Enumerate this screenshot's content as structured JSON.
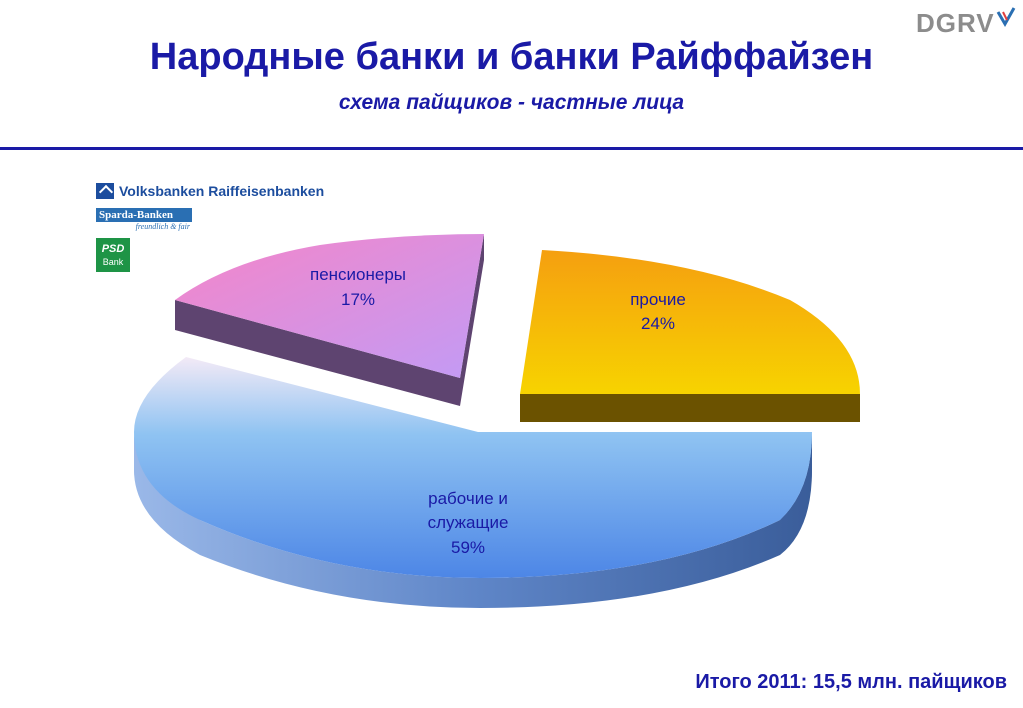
{
  "header": {
    "title": "Народные банки и банки Райффайзен",
    "subtitle": "схема пайщиков  -  частные лица",
    "brand": "DGRV"
  },
  "logos": {
    "vr": "Volksbanken Raiffeisenbanken",
    "sparda": "Sparda-Banken",
    "sparda_tagline": "freundlich & fair",
    "psd_top": "PSD",
    "psd_bottom": "Bank"
  },
  "chart_data": {
    "type": "pie",
    "title": "",
    "categories": [
      "рабочие и служащие",
      "пенсионеры",
      "прочие"
    ],
    "values": [
      59,
      17,
      24
    ],
    "labels": [
      {
        "lines": [
          "рабочие и",
          "служащие"
        ],
        "value": "59%"
      },
      {
        "lines": [
          "пенсионеры"
        ],
        "value": "17%"
      },
      {
        "lines": [
          "прочие"
        ],
        "value": "24%"
      }
    ],
    "colors": {
      "workers_top": "#8fc3f2",
      "workers_bottom": "#4d86e6",
      "workers_side": "#3a5d9a",
      "pensioners_top": "#f585c8",
      "pensioners_bottom": "#c29bf5",
      "pensioners_side": "#5e4470",
      "others_top": "#f59f10",
      "others_bottom": "#f7d300",
      "others_side": "#6b5200"
    },
    "style": "3d-exploded"
  },
  "footer": {
    "total": "Итого 2011:  15,5 млн. пайщиков"
  }
}
